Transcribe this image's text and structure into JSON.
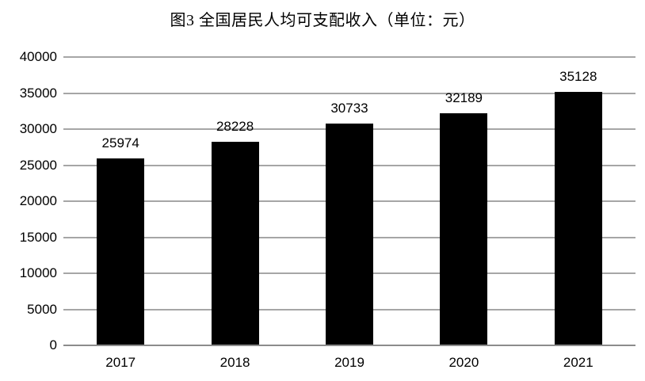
{
  "chart_data": {
    "type": "bar",
    "title": "图3 全国居民人均可支配收入（单位：元）",
    "unit_label": "元",
    "categories": [
      "2017",
      "2018",
      "2019",
      "2020",
      "2021"
    ],
    "values": [
      25974,
      28228,
      30733,
      32189,
      35128
    ],
    "xlabel": "",
    "ylabel": "",
    "ylim": [
      0,
      40000
    ],
    "ytick_step": 5000,
    "yticks": [
      0,
      5000,
      10000,
      15000,
      20000,
      25000,
      30000,
      35000,
      40000
    ],
    "grid": true,
    "legend": false,
    "data_labels": true,
    "colors": {
      "bar": "#000000",
      "gridline": "#a6a6a6",
      "axis_line": "#8c8c8c",
      "text": "#000000",
      "background": "#ffffff"
    }
  }
}
